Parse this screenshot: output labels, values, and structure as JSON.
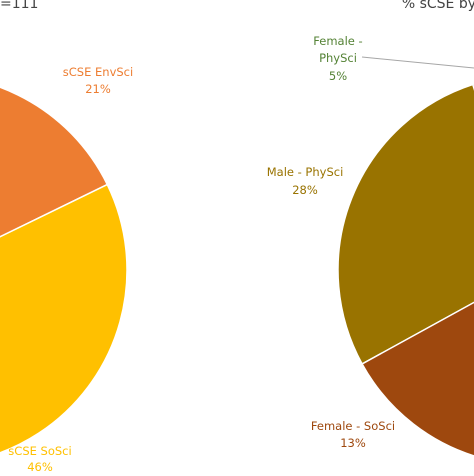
{
  "chart_data": [
    {
      "type": "pie",
      "title": "=111",
      "categories": [
        "sCSE EnvSci",
        "sCSE SoSci"
      ],
      "values": [
        21,
        46
      ],
      "value_labels": [
        "21%",
        "46%"
      ],
      "colors": [
        "#ed7d31",
        "#ffc000"
      ]
    },
    {
      "type": "pie",
      "title": "% sCSE by",
      "categories": [
        "Female - PhySci",
        "Male - PhySci",
        "Female - SoSci"
      ],
      "values": [
        5,
        28,
        13
      ],
      "value_labels": [
        "5%",
        "28%",
        "13%"
      ],
      "colors": [
        "#548235",
        "#997300",
        "#9e480e"
      ]
    }
  ]
}
